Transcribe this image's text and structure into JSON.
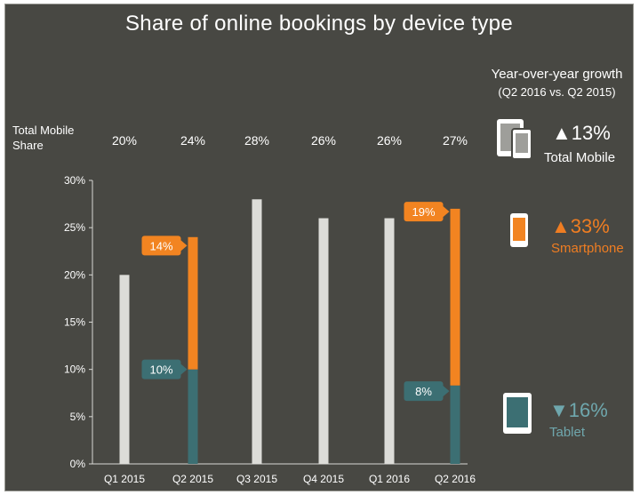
{
  "title": "Share of online bookings by device type",
  "total_mobile_share_label": "Total Mobile Share",
  "total_mobile_share_values": [
    "20%",
    "24%",
    "28%",
    "26%",
    "26%",
    "27%"
  ],
  "growth": {
    "title": "Year-over-year growth",
    "subtitle": "(Q2 2016 vs. Q2 2015)",
    "items": [
      {
        "value": "▲13%",
        "label": "Total Mobile",
        "icon": "devices-icon",
        "color": "#ffffff"
      },
      {
        "value": "▲33%",
        "label": "Smartphone",
        "icon": "smartphone-icon",
        "color": "#ef7d22"
      },
      {
        "value": "▼16%",
        "label": "Tablet",
        "icon": "tablet-icon",
        "color": "#6fa7ad"
      }
    ]
  },
  "colors": {
    "background": "#484843",
    "total": "#dcdcd8",
    "smartphone": "#f28421",
    "tablet": "#3c6f73"
  },
  "chart_data": {
    "type": "bar",
    "categories": [
      "Q1 2015",
      "Q2 2015",
      "Q3 2015",
      "Q4 2015",
      "Q1 2016",
      "Q2 2016"
    ],
    "ylim": [
      0,
      30
    ],
    "ytick_labels": [
      "0%",
      "5%",
      "10%",
      "15%",
      "20%",
      "25%",
      "30%"
    ],
    "series": [
      {
        "name": "Total Mobile",
        "values": [
          20,
          null,
          28,
          26,
          26,
          null
        ]
      },
      {
        "name": "Tablet",
        "values": [
          null,
          10,
          null,
          null,
          null,
          8.3
        ]
      },
      {
        "name": "Smartphone",
        "values": [
          null,
          14,
          null,
          null,
          null,
          18.7
        ]
      }
    ],
    "data_labels": [
      {
        "category": "Q2 2015",
        "series": "Smartphone",
        "text": "14%"
      },
      {
        "category": "Q2 2015",
        "series": "Tablet",
        "text": "10%"
      },
      {
        "category": "Q2 2016",
        "series": "Smartphone",
        "text": "19%"
      },
      {
        "category": "Q2 2016",
        "series": "Tablet",
        "text": "8%"
      }
    ],
    "xlabel": "",
    "ylabel": ""
  }
}
